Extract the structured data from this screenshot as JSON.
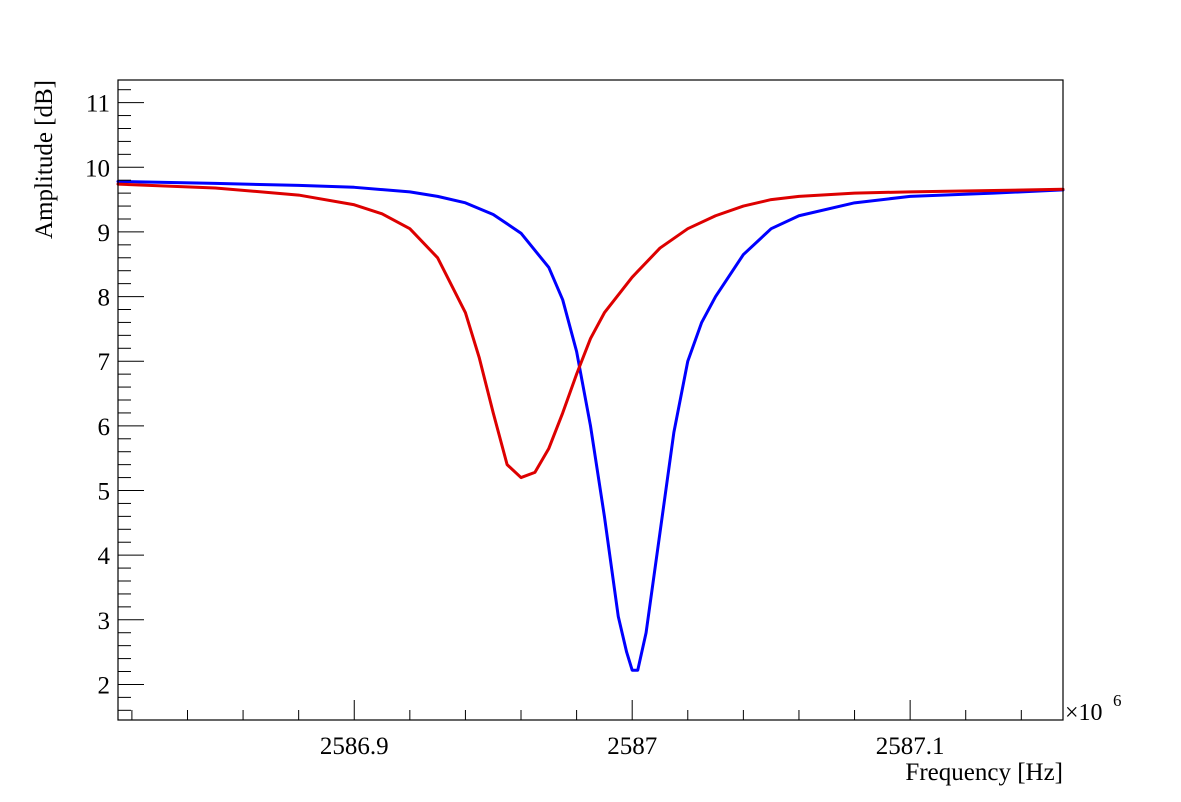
{
  "chart_data": {
    "type": "line",
    "title": "",
    "xlabel": "Frequency [Hz]",
    "ylabel": "Amplitude [dB]",
    "x_multiplier_label": "×10",
    "x_multiplier_exponent": "6",
    "xlim": [
      2586.815,
      2587.155
    ],
    "ylim": [
      1.45,
      11.35
    ],
    "x_ticks": [
      {
        "value": 2586.9,
        "label": "2586.9"
      },
      {
        "value": 2587.0,
        "label": "2587"
      },
      {
        "value": 2587.1,
        "label": "2587.1"
      }
    ],
    "y_ticks": [
      {
        "value": 2,
        "label": "2"
      },
      {
        "value": 3,
        "label": "3"
      },
      {
        "value": 4,
        "label": "4"
      },
      {
        "value": 5,
        "label": "5"
      },
      {
        "value": 6,
        "label": "6"
      },
      {
        "value": 7,
        "label": "7"
      },
      {
        "value": 8,
        "label": "8"
      },
      {
        "value": 9,
        "label": "9"
      },
      {
        "value": 10,
        "label": "10"
      },
      {
        "value": 11,
        "label": "11"
      }
    ],
    "grid": false,
    "legend": "none",
    "series": [
      {
        "color": "#0000ff",
        "x": [
          2586.815,
          2586.85,
          2586.88,
          2586.9,
          2586.92,
          2586.93,
          2586.94,
          2586.95,
          2586.96,
          2586.97,
          2586.975,
          2586.98,
          2586.985,
          2586.99,
          2586.995,
          2586.998,
          2587.0,
          2587.002,
          2587.005,
          2587.01,
          2587.015,
          2587.02,
          2587.025,
          2587.03,
          2587.04,
          2587.05,
          2587.06,
          2587.08,
          2587.1,
          2587.13,
          2587.155
        ],
        "y": [
          9.78,
          9.75,
          9.72,
          9.69,
          9.62,
          9.55,
          9.45,
          9.27,
          8.98,
          8.45,
          7.95,
          7.15,
          6.0,
          4.6,
          3.05,
          2.5,
          2.22,
          2.22,
          2.8,
          4.35,
          5.9,
          7.0,
          7.6,
          8.0,
          8.65,
          9.05,
          9.25,
          9.45,
          9.55,
          9.6,
          9.65
        ]
      },
      {
        "color": "#dd0000",
        "x": [
          2586.815,
          2586.85,
          2586.88,
          2586.9,
          2586.91,
          2586.92,
          2586.93,
          2586.94,
          2586.945,
          2586.95,
          2586.955,
          2586.96,
          2586.965,
          2586.97,
          2586.975,
          2586.98,
          2586.985,
          2586.99,
          2587.0,
          2587.01,
          2587.02,
          2587.03,
          2587.04,
          2587.05,
          2587.06,
          2587.08,
          2587.1,
          2587.13,
          2587.155
        ],
        "y": [
          9.74,
          9.68,
          9.57,
          9.42,
          9.28,
          9.05,
          8.6,
          7.75,
          7.05,
          6.2,
          5.4,
          5.2,
          5.28,
          5.65,
          6.2,
          6.8,
          7.35,
          7.75,
          8.3,
          8.75,
          9.05,
          9.25,
          9.4,
          9.5,
          9.55,
          9.6,
          9.62,
          9.64,
          9.66
        ]
      }
    ]
  }
}
